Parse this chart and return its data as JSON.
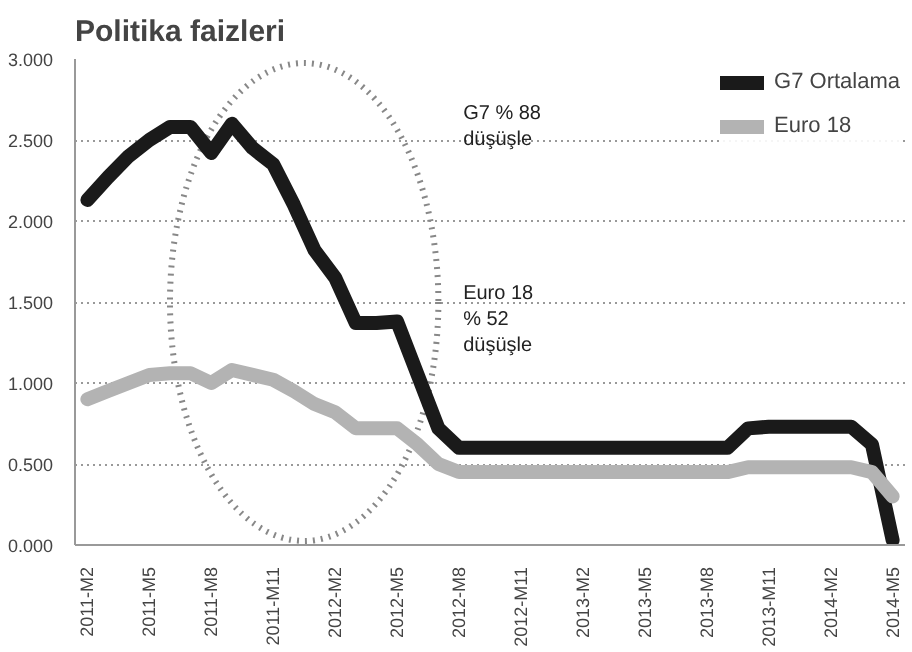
{
  "chart_data": {
    "type": "line",
    "title": "Politika faizleri",
    "categories": [
      "2011-M2",
      null,
      null,
      "2011-M5",
      null,
      null,
      "2011-M8",
      null,
      null,
      "2011-M11",
      null,
      null,
      "2012-M2",
      null,
      null,
      "2012-M5",
      null,
      null,
      "2012-M8",
      null,
      null,
      "2012-M11",
      null,
      null,
      "2013-M2",
      null,
      null,
      "2013-M5",
      null,
      null,
      "2013-M8",
      null,
      null,
      "2013-M11",
      null,
      null,
      "2014-M2",
      null,
      null,
      "2014-M5"
    ],
    "series": [
      {
        "name": "G7 Ortalama",
        "color": "#1a1a1a",
        "values": [
          2.13,
          2.27,
          2.4,
          2.5,
          2.58,
          2.58,
          2.42,
          2.6,
          2.45,
          2.35,
          2.1,
          1.82,
          1.65,
          1.37,
          1.37,
          1.38,
          1.05,
          0.72,
          0.6,
          0.6,
          0.6,
          0.6,
          0.6,
          0.6,
          0.6,
          0.6,
          0.6,
          0.6,
          0.6,
          0.6,
          0.6,
          0.6,
          0.72,
          0.73,
          0.73,
          0.73,
          0.73,
          0.73,
          0.62,
          0.03
        ]
      },
      {
        "name": "Euro 18",
        "color": "#b3b3b3",
        "values": [
          0.9,
          0.95,
          1.0,
          1.05,
          1.06,
          1.06,
          1.0,
          1.08,
          1.05,
          1.02,
          0.95,
          0.87,
          0.82,
          0.72,
          0.72,
          0.72,
          0.62,
          0.5,
          0.45,
          0.45,
          0.45,
          0.45,
          0.45,
          0.45,
          0.45,
          0.45,
          0.45,
          0.45,
          0.45,
          0.45,
          0.45,
          0.45,
          0.48,
          0.48,
          0.48,
          0.48,
          0.48,
          0.48,
          0.45,
          0.3
        ]
      }
    ],
    "ylim": [
      0,
      3
    ],
    "yticks": [
      {
        "value": 0,
        "label": "0.000"
      },
      {
        "value": 0.5,
        "label": "0.500"
      },
      {
        "value": 1,
        "label": "1.000"
      },
      {
        "value": 1.5,
        "label": "1.500"
      },
      {
        "value": 2,
        "label": "2.000"
      },
      {
        "value": 2.5,
        "label": "2.500"
      },
      {
        "value": 3,
        "label": "3.000"
      }
    ],
    "grid": "y",
    "legend": "top right",
    "line_style": "solid",
    "marker": "none",
    "annotations": [
      "G7 % 88\ndüşüşle",
      "Euro 18\n% 52\ndüşüşle"
    ]
  }
}
